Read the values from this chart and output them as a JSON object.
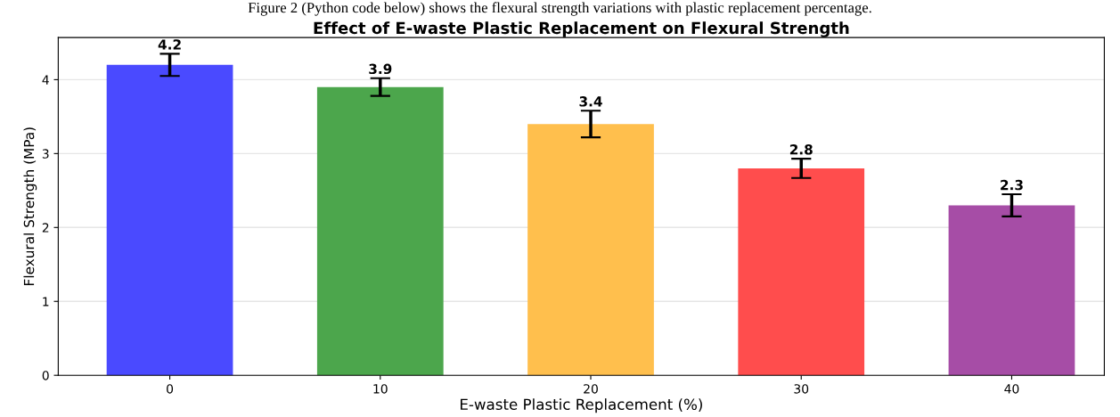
{
  "chart_data": {
    "type": "bar",
    "title": "Effect of E-waste Plastic Replacement on Flexural Strength",
    "xlabel": "E-waste Plastic Replacement (%)",
    "ylabel": "Flexural Strength (MPa)",
    "annotations": [
      "Figure 2 (Python code below) shows the flexural strength variations with plastic replacement percentage."
    ],
    "categories": [
      "0",
      "10",
      "20",
      "30",
      "40"
    ],
    "values": [
      4.2,
      3.9,
      3.4,
      2.8,
      2.3
    ],
    "errors": [
      0.15,
      0.12,
      0.18,
      0.13,
      0.15
    ],
    "colors": [
      "#4a4aff",
      "#4ca64c",
      "#ffbf4d",
      "#ff4d4d",
      "#a64da6"
    ],
    "ylim": [
      0,
      4.57
    ],
    "yticks": [
      0,
      1,
      2,
      3,
      4
    ],
    "grid": "y",
    "data_labels": true
  }
}
